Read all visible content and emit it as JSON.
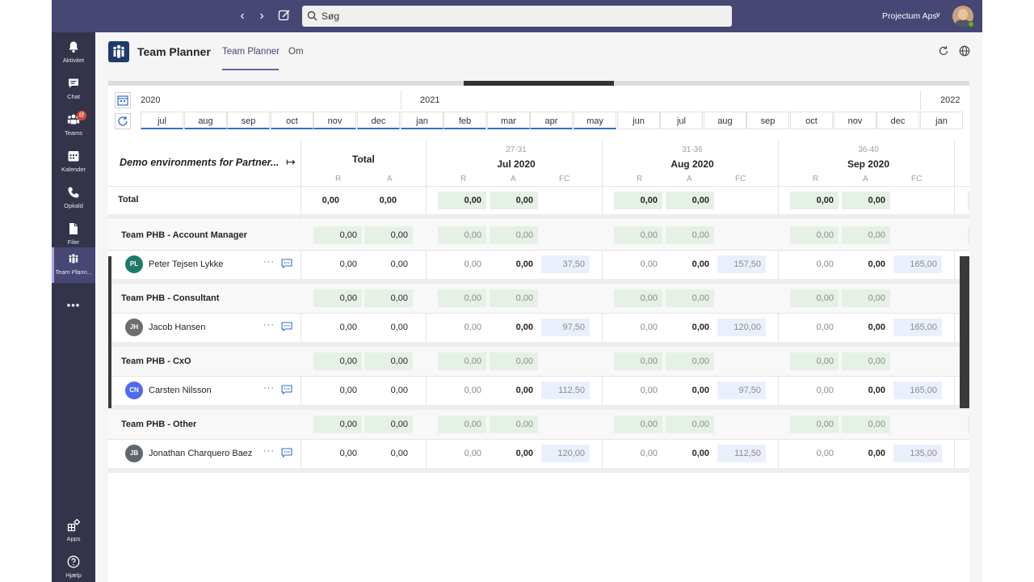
{
  "topbar": {
    "search_placeholder": "Søg",
    "org_name": "Projectum Aps"
  },
  "rail": {
    "items": [
      {
        "label": "Aktivitet",
        "icon": "bell-icon"
      },
      {
        "label": "Chat",
        "icon": "chat-icon"
      },
      {
        "label": "Teams",
        "icon": "teams-icon",
        "badge": "@"
      },
      {
        "label": "Kalender",
        "icon": "calendar-icon"
      },
      {
        "label": "Opkald",
        "icon": "phone-icon"
      },
      {
        "label": "Filer",
        "icon": "file-icon"
      },
      {
        "label": "Team Plann...",
        "icon": "team-planner-icon"
      }
    ],
    "more": "•••",
    "apps_label": "Apps",
    "help_label": "Hjælp"
  },
  "app": {
    "name": "Team Planner",
    "tabs": [
      "Team Planner",
      "Om"
    ]
  },
  "timeline": {
    "years": [
      "2020",
      "2021",
      "2022"
    ],
    "months": [
      "jul",
      "aug",
      "sep",
      "oct",
      "nov",
      "dec",
      "jan",
      "feb",
      "mar",
      "apr",
      "may",
      "jun",
      "jul",
      "aug",
      "sep",
      "oct",
      "nov",
      "dec",
      "jan"
    ]
  },
  "grid": {
    "project_title": "Demo environments for Partner...",
    "total_header": "Total",
    "col_r": "R",
    "col_a": "A",
    "col_fc": "FC",
    "months": [
      {
        "weeks": "27-31",
        "name": "Jul 2020"
      },
      {
        "weeks": "31-36",
        "name": "Aug 2020"
      },
      {
        "weeks": "36-40",
        "name": "Sep 2020"
      }
    ],
    "total_row": {
      "label": "Total",
      "total": [
        "0,00",
        "0,00"
      ],
      "months": [
        [
          "0,00",
          "0,00"
        ],
        [
          "0,00",
          "0,00"
        ],
        [
          "0,00",
          "0,00"
        ]
      ]
    },
    "groups": [
      {
        "name": "Team PHB - Account Manager",
        "total": [
          "0,00",
          "0,00"
        ],
        "months": [
          [
            "0,00",
            "0,00"
          ],
          [
            "0,00",
            "0,00"
          ],
          [
            "0,00",
            "0,00"
          ]
        ],
        "person": {
          "initials": "PL",
          "name": "Peter Tejsen Lykke",
          "color": "#1f7a6b",
          "total": [
            "0,00",
            "0,00"
          ],
          "months": [
            [
              "0,00",
              "0,00",
              "37,50"
            ],
            [
              "0,00",
              "0,00",
              "157,50"
            ],
            [
              "0,00",
              "0,00",
              "165,00"
            ]
          ]
        }
      },
      {
        "name": "Team PHB - Consultant",
        "total": [
          "0,00",
          "0,00"
        ],
        "months": [
          [
            "0,00",
            "0,00"
          ],
          [
            "0,00",
            "0,00"
          ],
          [
            "0,00",
            "0,00"
          ]
        ],
        "person": {
          "initials": "JH",
          "name": "Jacob Hansen",
          "color": "#6e6e6e",
          "total": [
            "0,00",
            "0,00"
          ],
          "months": [
            [
              "0,00",
              "0,00",
              "97,50"
            ],
            [
              "0,00",
              "0,00",
              "120,00"
            ],
            [
              "0,00",
              "0,00",
              "165,00"
            ]
          ]
        }
      },
      {
        "name": "Team PHB - CxO",
        "total": [
          "0,00",
          "0,00"
        ],
        "months": [
          [
            "0,00",
            "0,00"
          ],
          [
            "0,00",
            "0,00"
          ],
          [
            "0,00",
            "0,00"
          ]
        ],
        "person": {
          "initials": "CN",
          "name": "Carsten Nilsson",
          "color": "#4f6bed",
          "total": [
            "0,00",
            "0,00"
          ],
          "months": [
            [
              "0,00",
              "0,00",
              "112,50"
            ],
            [
              "0,00",
              "0,00",
              "97,50"
            ],
            [
              "0,00",
              "0,00",
              "165,00"
            ]
          ]
        }
      },
      {
        "name": "Team PHB - Other",
        "total": [
          "0,00",
          "0,00"
        ],
        "months": [
          [
            "0,00",
            "0,00"
          ],
          [
            "0,00",
            "0,00"
          ],
          [
            "0,00",
            "0,00"
          ]
        ],
        "person": {
          "initials": "JB",
          "name": "Jonathan Charquero Baez",
          "color": "#5c6770",
          "total": [
            "0,00",
            "0,00"
          ],
          "months": [
            [
              "0,00",
              "0,00",
              "120,00"
            ],
            [
              "0,00",
              "0,00",
              "112,50"
            ],
            [
              "0,00",
              "0,00",
              "135,00"
            ]
          ]
        }
      }
    ]
  }
}
